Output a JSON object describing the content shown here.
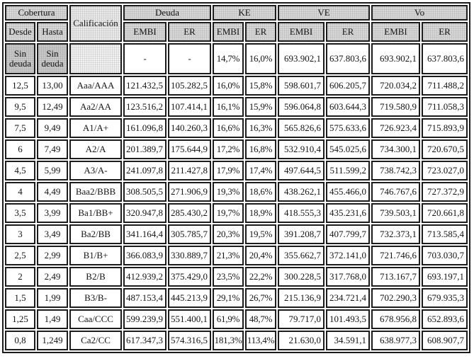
{
  "table": {
    "header": {
      "cobertura": "Cobertura",
      "calificacion": "Calificación",
      "deuda": "Deuda",
      "ke": "KE",
      "ve": "VE",
      "vo": "Vo",
      "desde": "Desde",
      "hasta": "Hasta",
      "embi": "EMBI",
      "er": "ER"
    },
    "rows": [
      [
        "Sin deuda",
        "Sin deuda",
        "",
        "-",
        "-",
        "14,7%",
        "16,0%",
        "693.902,1",
        "637.803,6",
        "693.902,1",
        "637.803,6"
      ],
      [
        "12,5",
        "13,00",
        "Aaa/AAA",
        "121.432,5",
        "105.282,5",
        "16,0%",
        "15,8%",
        "598.601,7",
        "606.205,7",
        "720.034,2",
        "711.488,2"
      ],
      [
        "9,5",
        "12,49",
        "Aa2/AA",
        "123.516,2",
        "107.414,1",
        "16,1%",
        "15,9%",
        "596.064,8",
        "603.644,3",
        "719.580,9",
        "711.058,3"
      ],
      [
        "7,5",
        "9,49",
        "A1/A+",
        "161.096,8",
        "140.260,3",
        "16,6%",
        "16,3%",
        "565.826,6",
        "575.633,6",
        "726.923,4",
        "715.893,9"
      ],
      [
        "6",
        "7,49",
        "A2/A",
        "201.389,7",
        "175.644,9",
        "17,2%",
        "16,8%",
        "532.910,4",
        "545.025,6",
        "734.300,1",
        "720.670,5"
      ],
      [
        "4,5",
        "5,99",
        "A3/A-",
        "241.097,8",
        "211.427,8",
        "17,9%",
        "17,4%",
        "497.644,5",
        "511.599,2",
        "738.742,3",
        "723.027,0"
      ],
      [
        "4",
        "4,49",
        "Baa2/BBB",
        "308.505,5",
        "271.906,9",
        "19,3%",
        "18,6%",
        "438.262,1",
        "455.466,0",
        "746.767,6",
        "727.372,9"
      ],
      [
        "3,5",
        "3,99",
        "Ba1/BB+",
        "320.947,8",
        "285.430,2",
        "19,7%",
        "18,9%",
        "418.555,3",
        "435.231,6",
        "739.503,1",
        "720.661,8"
      ],
      [
        "3",
        "3,49",
        "Ba2/BB",
        "341.164,4",
        "305.785,7",
        "20,3%",
        "19,5%",
        "391.208,7",
        "407.799,7",
        "732.373,1",
        "713.585,4"
      ],
      [
        "2,5",
        "2,99",
        "B1/B+",
        "366.083,9",
        "330.889,7",
        "21,3%",
        "20,4%",
        "355.662,7",
        "372.141,0",
        "721.746,6",
        "703.030,7"
      ],
      [
        "2",
        "2,49",
        "B2/B",
        "412.939,2",
        "375.429,0",
        "23,5%",
        "22,2%",
        "300.228,5",
        "317.768,0",
        "713.167,7",
        "693.197,1"
      ],
      [
        "1,5",
        "1,99",
        "B3/B-",
        "487.153,4",
        "445.213,9",
        "29,1%",
        "26,7%",
        "215.136,9",
        "234.721,4",
        "702.290,3",
        "679.935,3"
      ],
      [
        "1,25",
        "1,49",
        "Caa/CCC",
        "599.239,9",
        "551.400,1",
        "61,9%",
        "48,7%",
        "79.717,0",
        "101.493,5",
        "678.956,8",
        "652.893,6"
      ],
      [
        "0,8",
        "1,249",
        "Ca2/CC",
        "617.347,3",
        "574.316,5",
        "181,3%",
        "113,4%",
        "21.630,0",
        "34.591,1",
        "638.977,3",
        "608.907,7"
      ]
    ],
    "colors": {
      "grid": "#1c1c1c",
      "header_bg": "#d8d8d8",
      "sin_deuda_bg": "#c9c9c9",
      "calificacion_bg": "#eaeaea",
      "empty_cell_bg": "#f2f2f2",
      "text": "#141414"
    }
  }
}
